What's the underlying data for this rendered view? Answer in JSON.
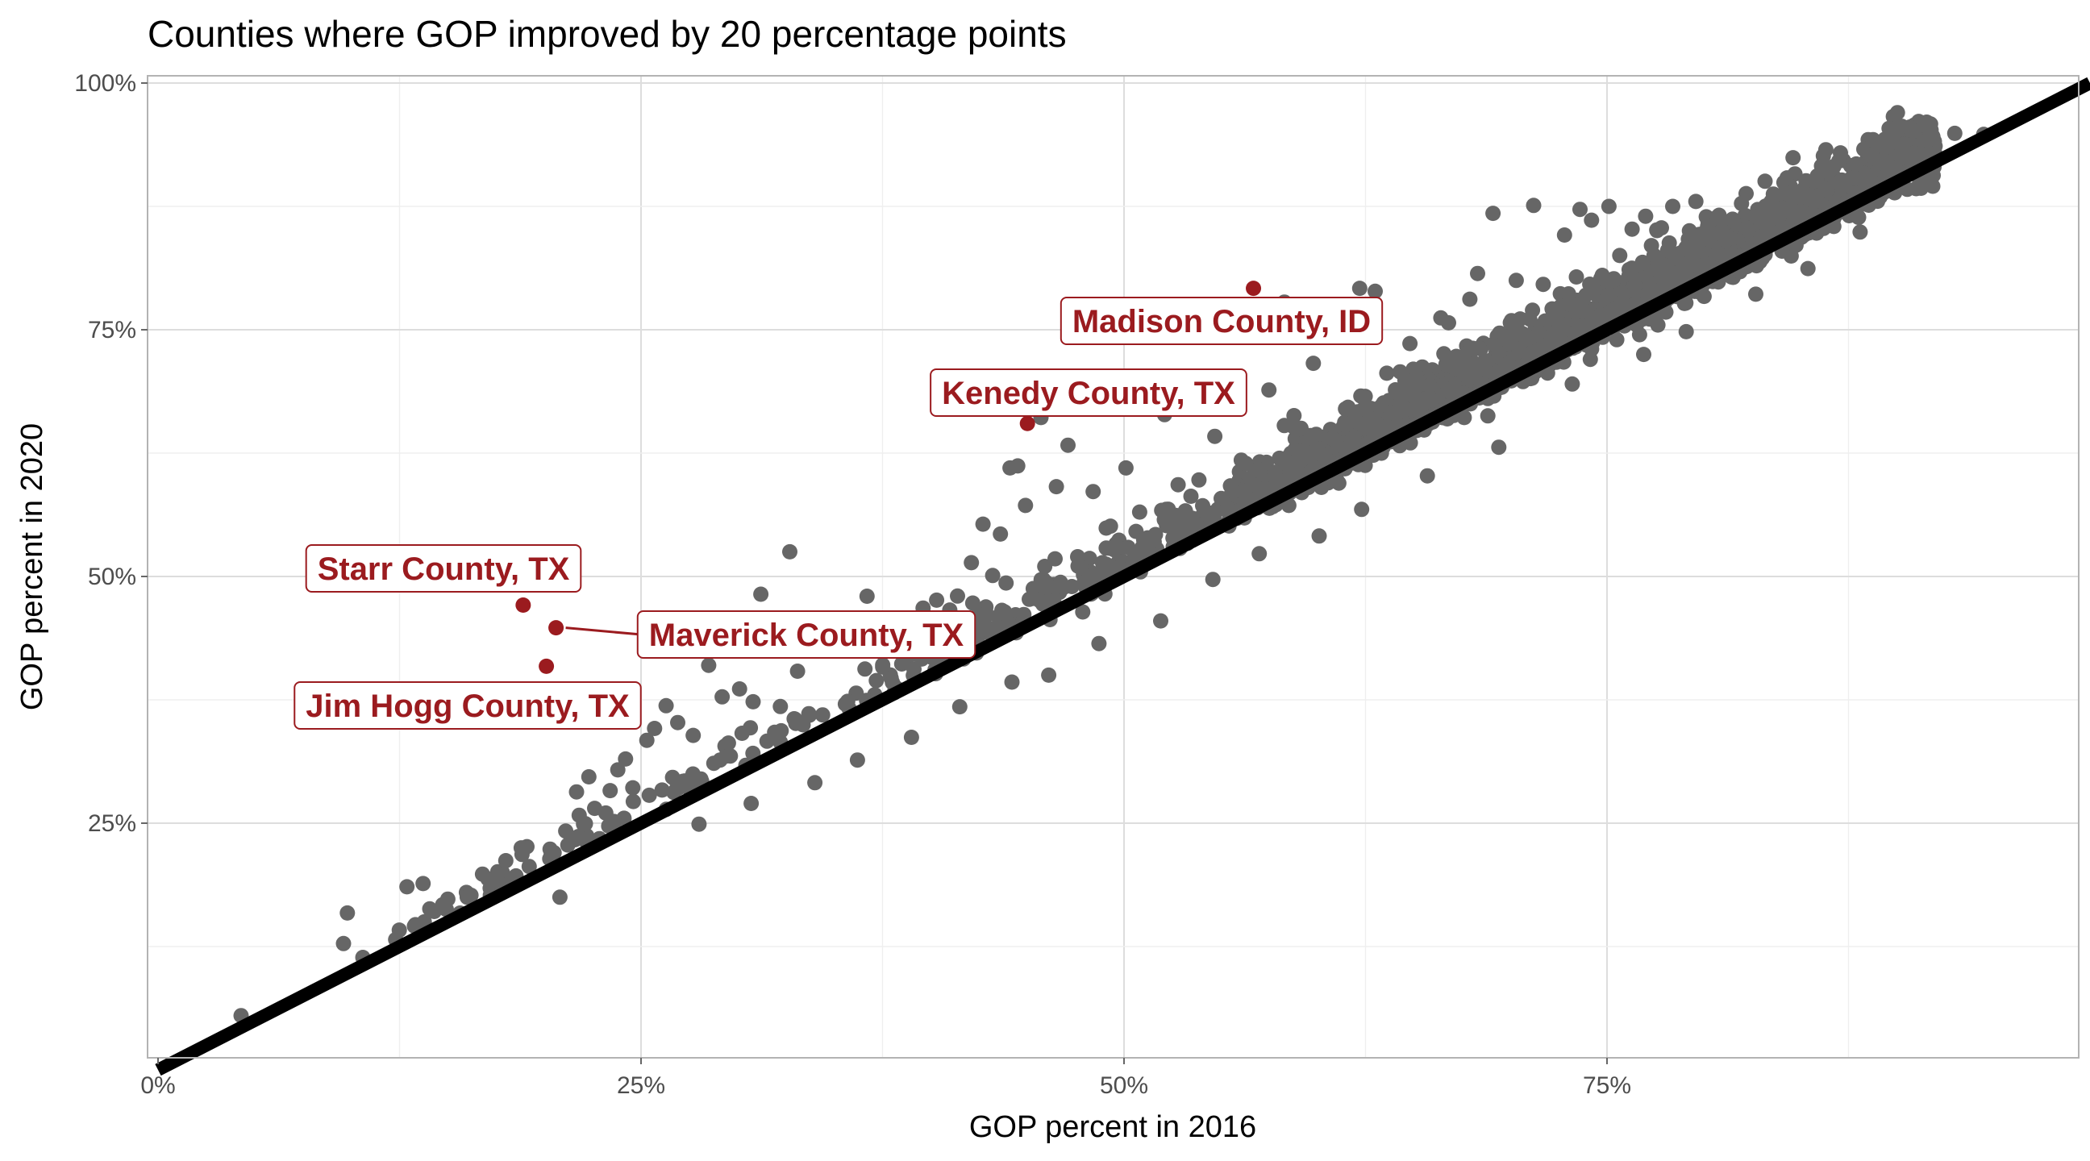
{
  "chart_data": {
    "type": "scatter",
    "title": "Counties where GOP improved by 20 percentage points",
    "xlabel": "GOP percent in 2016",
    "ylabel": "GOP percent in 2020",
    "xlim": [
      0,
      100
    ],
    "ylim": [
      0,
      100
    ],
    "x_ticks": [
      0,
      25,
      50,
      75
    ],
    "x_tick_labels": [
      "0%",
      "25%",
      "50%",
      "75%"
    ],
    "y_ticks": [
      25,
      50,
      75,
      100
    ],
    "y_tick_labels": [
      "25%",
      "50%",
      "75%",
      "100%"
    ],
    "grid": true,
    "reference_line": {
      "from": [
        0,
        0
      ],
      "to": [
        100,
        100
      ],
      "color": "#000000"
    },
    "colors": {
      "points": "#666666",
      "highlight": "#9b1b1f",
      "line": "#000000"
    },
    "highlighted": [
      {
        "label": "Madison County, ID",
        "x": 56.7,
        "y": 79.2
      },
      {
        "label": "Kenedy County, TX",
        "x": 45.0,
        "y": 65.5
      },
      {
        "label": "Starr County, TX",
        "x": 18.9,
        "y": 47.1
      },
      {
        "label": "Maverick County, TX",
        "x": 20.6,
        "y": 44.8
      },
      {
        "label": "Jim Hogg County, TX",
        "x": 20.1,
        "y": 40.9
      }
    ],
    "outliers": [
      [
        4.3,
        5.5
      ],
      [
        9.8,
        15.9
      ],
      [
        9.6,
        12.8
      ],
      [
        10.6,
        11.4
      ],
      [
        12.3,
        13.2
      ],
      [
        13.7,
        14.8
      ],
      [
        15.0,
        17.3
      ],
      [
        16.0,
        17.5
      ],
      [
        17.2,
        17.7
      ],
      [
        18.0,
        21.2
      ],
      [
        18.8,
        22.5
      ],
      [
        20.5,
        22.0
      ],
      [
        20.8,
        17.5
      ],
      [
        21.1,
        24.2
      ],
      [
        21.8,
        25.8
      ],
      [
        22.3,
        29.7
      ],
      [
        22.6,
        26.5
      ],
      [
        23.4,
        28.3
      ],
      [
        23.8,
        30.4
      ],
      [
        24.2,
        31.5
      ],
      [
        24.6,
        27.2
      ],
      [
        25.3,
        33.4
      ],
      [
        25.7,
        34.6
      ],
      [
        26.3,
        36.9
      ],
      [
        26.9,
        35.2
      ],
      [
        27.7,
        33.9
      ],
      [
        28.5,
        41.0
      ],
      [
        29.2,
        37.8
      ],
      [
        30.1,
        38.6
      ],
      [
        30.8,
        37.3
      ],
      [
        31.2,
        48.2
      ],
      [
        32.7,
        52.5
      ],
      [
        33.1,
        40.4
      ],
      [
        35.4,
        43.1
      ],
      [
        36.1,
        44.2
      ],
      [
        36.7,
        48.0
      ],
      [
        38.5,
        45.3
      ],
      [
        39.6,
        46.8
      ],
      [
        40.3,
        47.6
      ],
      [
        42.1,
        51.4
      ],
      [
        42.7,
        55.3
      ],
      [
        43.2,
        50.1
      ],
      [
        43.6,
        54.3
      ],
      [
        44.1,
        61.0
      ],
      [
        44.5,
        61.2
      ],
      [
        44.9,
        57.2
      ],
      [
        45.7,
        66.1
      ],
      [
        46.5,
        59.1
      ],
      [
        47.1,
        63.3
      ],
      [
        48.4,
        58.6
      ],
      [
        50.1,
        61.0
      ],
      [
        52.1,
        66.4
      ],
      [
        54.7,
        64.2
      ],
      [
        55.6,
        68.0
      ],
      [
        57.5,
        68.9
      ],
      [
        58.3,
        77.8
      ],
      [
        59.8,
        71.6
      ],
      [
        61.4,
        77.0
      ],
      [
        62.2,
        79.2
      ],
      [
        63.0,
        78.9
      ],
      [
        64.8,
        73.6
      ],
      [
        66.4,
        76.2
      ],
      [
        66.8,
        75.7
      ],
      [
        67.2,
        72.3
      ],
      [
        68.3,
        80.7
      ],
      [
        69.1,
        86.8
      ],
      [
        70.3,
        80.0
      ],
      [
        71.2,
        87.6
      ],
      [
        72.8,
        84.6
      ],
      [
        73.6,
        87.2
      ],
      [
        74.2,
        86.1
      ],
      [
        75.1,
        87.5
      ],
      [
        76.3,
        85.2
      ],
      [
        77.0,
        86.5
      ],
      [
        78.4,
        87.5
      ],
      [
        79.6,
        88.0
      ],
      [
        80.8,
        86.6
      ],
      [
        82.2,
        88.8
      ],
      [
        83.1,
        87.3
      ],
      [
        84.2,
        88.9
      ],
      [
        85.3,
        90.1
      ],
      [
        86.1,
        91.6
      ],
      [
        87.0,
        92.1
      ],
      [
        87.9,
        91.8
      ],
      [
        88.6,
        92.7
      ],
      [
        89.6,
        95.4
      ],
      [
        90.4,
        93.8
      ],
      [
        90.9,
        92.9
      ],
      [
        93.0,
        94.9
      ],
      [
        94.5,
        94.8
      ],
      [
        76.9,
        72.5
      ],
      [
        79.1,
        74.8
      ],
      [
        82.7,
        78.6
      ],
      [
        85.4,
        81.2
      ],
      [
        88.1,
        84.9
      ],
      [
        91.0,
        89.3
      ],
      [
        73.2,
        69.5
      ],
      [
        69.4,
        63.1
      ],
      [
        65.7,
        60.2
      ],
      [
        62.3,
        56.8
      ],
      [
        60.1,
        54.1
      ],
      [
        57.0,
        52.3
      ],
      [
        54.6,
        49.7
      ],
      [
        51.9,
        45.5
      ],
      [
        48.7,
        43.2
      ],
      [
        46.1,
        40.0
      ],
      [
        44.2,
        39.3
      ],
      [
        41.5,
        36.8
      ],
      [
        39.0,
        33.7
      ],
      [
        36.2,
        31.4
      ],
      [
        34.0,
        29.1
      ],
      [
        30.7,
        27.0
      ],
      [
        28.0,
        24.9
      ],
      [
        44.8,
        45.6
      ],
      [
        47.6,
        52.0
      ],
      [
        49.3,
        55.1
      ],
      [
        52.8,
        59.3
      ],
      [
        58.8,
        66.3
      ],
      [
        63.6,
        70.6
      ],
      [
        67.9,
        78.1
      ],
      [
        71.7,
        79.6
      ]
    ]
  }
}
